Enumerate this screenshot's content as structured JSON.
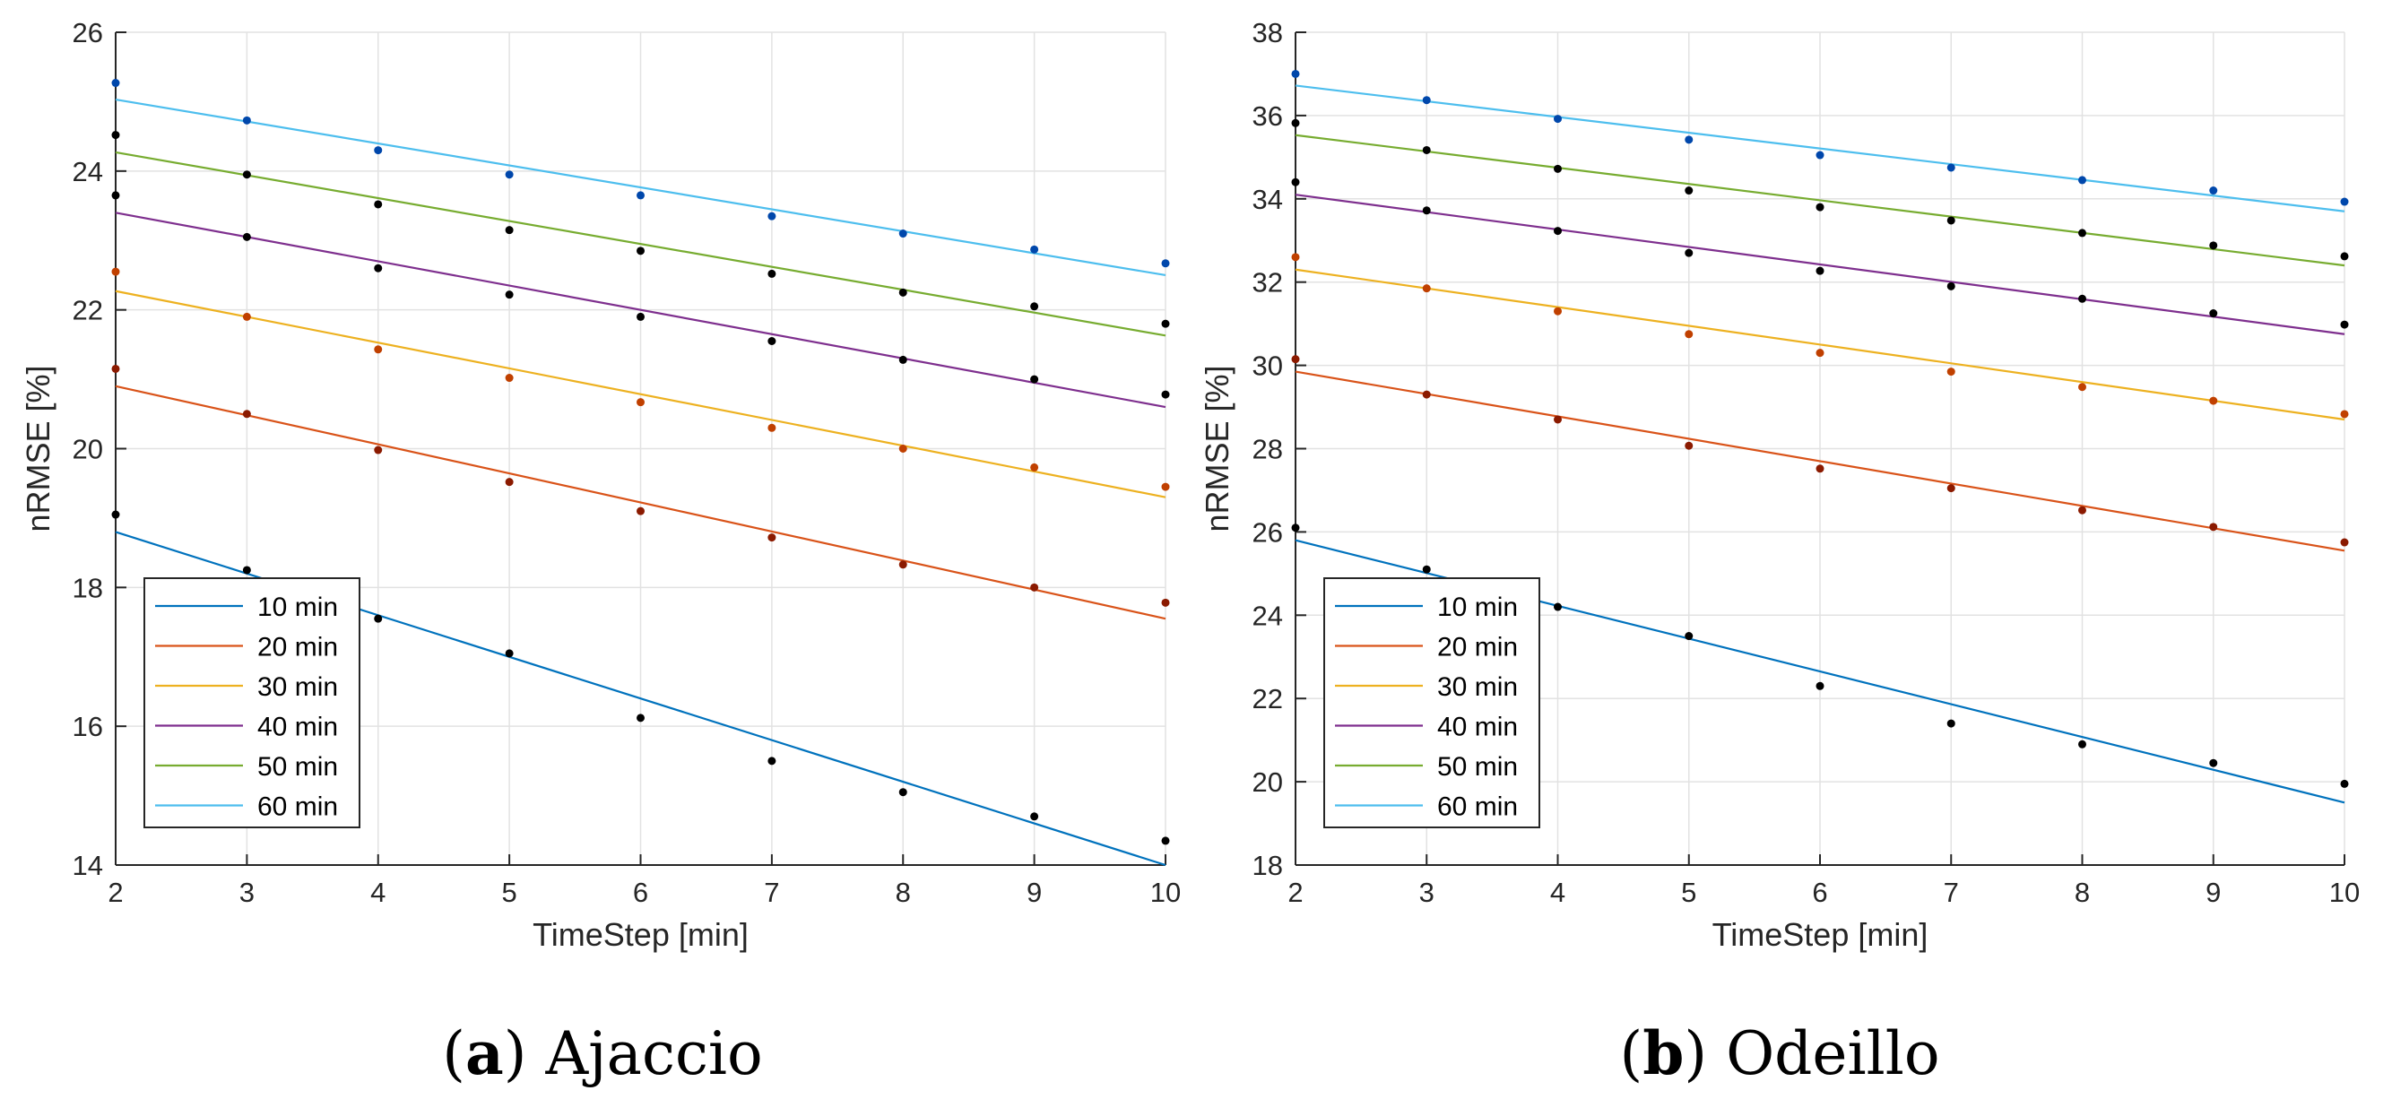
{
  "chart_data": [
    {
      "type": "line",
      "caption_letter": "a",
      "caption_title": "Ajaccio",
      "xlabel": "TimeStep [min]",
      "ylabel": "nRMSE [%]",
      "xlim": [
        2,
        10
      ],
      "ylim": [
        14,
        26
      ],
      "xticks": [
        2,
        3,
        4,
        5,
        6,
        7,
        8,
        9,
        10
      ],
      "yticks": [
        14,
        16,
        18,
        20,
        22,
        24,
        26
      ],
      "grid": true,
      "legend_position": "bottom-left",
      "x": [
        2,
        3,
        4,
        5,
        6,
        7,
        8,
        9,
        10
      ],
      "series": [
        {
          "name": "10 min",
          "color": "#0072BD",
          "dot_color": "#000000",
          "fit": [
            18.8,
            14.0
          ],
          "points": [
            19.05,
            18.25,
            17.55,
            17.05,
            16.12,
            15.5,
            15.05,
            14.7,
            14.35
          ]
        },
        {
          "name": "20 min",
          "color": "#D95319",
          "dot_color": "#8B1A00",
          "fit": [
            20.9,
            17.55
          ],
          "points": [
            21.15,
            20.5,
            19.98,
            19.52,
            19.1,
            18.72,
            18.33,
            18.0,
            17.78
          ]
        },
        {
          "name": "30 min",
          "color": "#EDB120",
          "dot_color": "#C04000",
          "fit": [
            22.27,
            19.3
          ],
          "points": [
            22.55,
            21.9,
            21.43,
            21.02,
            20.67,
            20.3,
            20.0,
            19.73,
            19.45
          ]
        },
        {
          "name": "40 min",
          "color": "#7E2F8E",
          "dot_color": "#000000",
          "fit": [
            23.4,
            20.6
          ],
          "points": [
            23.65,
            23.05,
            22.6,
            22.22,
            21.9,
            21.55,
            21.28,
            21.0,
            20.78
          ]
        },
        {
          "name": "50 min",
          "color": "#77AC30",
          "dot_color": "#000000",
          "fit": [
            24.27,
            21.63
          ],
          "points": [
            24.52,
            23.95,
            23.52,
            23.15,
            22.85,
            22.52,
            22.25,
            22.05,
            21.8
          ]
        },
        {
          "name": "60 min",
          "color": "#4DBEEE",
          "dot_color": "#0047AB",
          "fit": [
            25.03,
            22.5
          ],
          "points": [
            25.27,
            24.73,
            24.3,
            23.95,
            23.65,
            23.35,
            23.1,
            22.87,
            22.67
          ]
        }
      ]
    },
    {
      "type": "line",
      "caption_letter": "b",
      "caption_title": "Odeillo",
      "xlabel": "TimeStep [min]",
      "ylabel": "nRMSE [%]",
      "xlim": [
        2,
        10
      ],
      "ylim": [
        18,
        38
      ],
      "xticks": [
        2,
        3,
        4,
        5,
        6,
        7,
        8,
        9,
        10
      ],
      "yticks": [
        18,
        20,
        22,
        24,
        26,
        28,
        30,
        32,
        34,
        36,
        38
      ],
      "grid": true,
      "legend_position": "bottom-left",
      "x": [
        2,
        3,
        4,
        5,
        6,
        7,
        8,
        9,
        10
      ],
      "series": [
        {
          "name": "10 min",
          "color": "#0072BD",
          "dot_color": "#000000",
          "fit": [
            25.8,
            19.5
          ],
          "points": [
            26.1,
            25.1,
            24.2,
            23.5,
            22.3,
            21.4,
            20.9,
            20.45,
            19.95
          ]
        },
        {
          "name": "20 min",
          "color": "#D95319",
          "dot_color": "#8B1A00",
          "fit": [
            29.85,
            25.55
          ],
          "points": [
            30.15,
            29.3,
            28.7,
            28.07,
            27.52,
            27.05,
            26.52,
            26.12,
            25.75
          ]
        },
        {
          "name": "30 min",
          "color": "#EDB120",
          "dot_color": "#C04000",
          "fit": [
            32.3,
            28.7
          ],
          "points": [
            32.6,
            31.85,
            31.3,
            30.75,
            30.3,
            29.85,
            29.48,
            29.15,
            28.83
          ]
        },
        {
          "name": "40 min",
          "color": "#7E2F8E",
          "dot_color": "#000000",
          "fit": [
            34.1,
            30.75
          ],
          "points": [
            34.4,
            33.72,
            33.23,
            32.7,
            32.27,
            31.9,
            31.6,
            31.25,
            30.98
          ]
        },
        {
          "name": "50 min",
          "color": "#77AC30",
          "dot_color": "#000000",
          "fit": [
            35.53,
            32.4
          ],
          "points": [
            35.82,
            35.17,
            34.72,
            34.2,
            33.8,
            33.48,
            33.18,
            32.88,
            32.62
          ]
        },
        {
          "name": "60 min",
          "color": "#4DBEEE",
          "dot_color": "#0047AB",
          "fit": [
            36.72,
            33.7
          ],
          "points": [
            37.0,
            36.37,
            35.92,
            35.42,
            35.05,
            34.75,
            34.45,
            34.2,
            33.93
          ]
        }
      ]
    }
  ]
}
